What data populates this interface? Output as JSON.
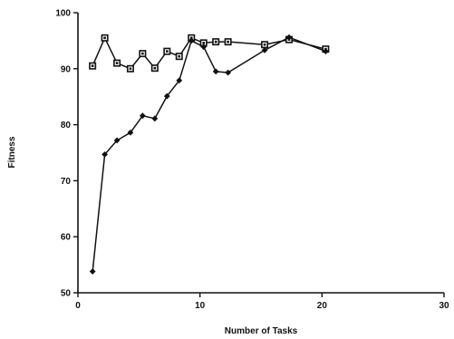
{
  "chart_data": {
    "type": "line",
    "xlabel": "Number of Tasks",
    "ylabel": "Fitness",
    "xlim": [
      0,
      30
    ],
    "ylim": [
      50,
      100
    ],
    "xticks": [
      0,
      10,
      20,
      30
    ],
    "yticks": [
      50,
      60,
      70,
      80,
      90,
      100
    ],
    "grid": false,
    "legend": "none",
    "series": [
      {
        "marker": "square",
        "color": "#111111",
        "x": [
          1.2,
          2.2,
          3.2,
          4.3,
          5.3,
          6.3,
          7.3,
          8.3,
          9.3,
          10.3,
          11.3,
          12.3,
          15.3,
          17.3,
          20.3
        ],
        "y": [
          90.5,
          95.5,
          91.0,
          90.0,
          92.7,
          90.1,
          93.1,
          92.2,
          95.5,
          94.6,
          94.8,
          94.8,
          94.3,
          95.2,
          93.5
        ]
      },
      {
        "marker": "diamond",
        "color": "#111111",
        "x": [
          1.2,
          2.2,
          3.2,
          4.3,
          5.3,
          6.3,
          7.3,
          8.3,
          9.3,
          10.3,
          11.3,
          12.3,
          15.3,
          17.3,
          20.3
        ],
        "y": [
          53.8,
          74.7,
          77.2,
          78.6,
          81.6,
          81.1,
          85.1,
          87.9,
          95.0,
          93.9,
          89.5,
          89.3,
          93.3,
          95.6,
          93.1
        ]
      }
    ]
  }
}
